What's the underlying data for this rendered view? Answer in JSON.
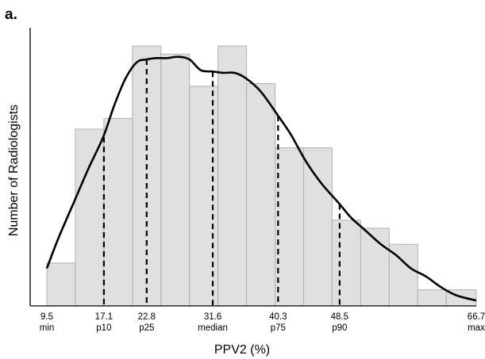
{
  "panel_label": "a.",
  "chart_data": {
    "type": "bar",
    "xlabel": "PPV2 (%)",
    "ylabel": "Number of Radiologists",
    "xlim": [
      9.5,
      66.7
    ],
    "ylim": [
      0,
      1
    ],
    "y_ticks_shown": false,
    "grid": false,
    "legend": "none",
    "colors": {
      "bar_fill": "#e0e0e0",
      "bar_stroke": "#b0b0b0",
      "curve": "#000000",
      "axis": "#000000"
    },
    "histogram": {
      "bin_edges": [
        9.5,
        13.3,
        17.1,
        20.9,
        24.7,
        28.5,
        32.3,
        36.1,
        39.9,
        43.7,
        47.5,
        51.3,
        55.1,
        58.9,
        62.7,
        66.7
      ],
      "values": [
        0.16,
        0.66,
        0.7,
        0.97,
        0.94,
        0.82,
        0.97,
        0.83,
        0.59,
        0.59,
        0.32,
        0.29,
        0.23,
        0.06,
        0.06
      ]
    },
    "density_curve": {
      "x": [
        9.5,
        11,
        13,
        15,
        17,
        18.5,
        20,
        21.5,
        22.8,
        24,
        25.5,
        27,
        28.5,
        30,
        31.6,
        33,
        34.5,
        36,
        38,
        40.3,
        42,
        44,
        46,
        48.5,
        50,
        52,
        54,
        56,
        58,
        60,
        62,
        64,
        66.7
      ],
      "y": [
        0.14,
        0.25,
        0.38,
        0.51,
        0.63,
        0.75,
        0.85,
        0.91,
        0.92,
        0.925,
        0.925,
        0.93,
        0.92,
        0.88,
        0.875,
        0.87,
        0.87,
        0.85,
        0.8,
        0.71,
        0.64,
        0.54,
        0.46,
        0.38,
        0.33,
        0.28,
        0.23,
        0.19,
        0.14,
        0.11,
        0.07,
        0.04,
        0.02
      ]
    },
    "reference_lines": [
      {
        "x": 17.1,
        "y": 0.63
      },
      {
        "x": 22.8,
        "y": 0.92
      },
      {
        "x": 31.6,
        "y": 0.875
      },
      {
        "x": 40.3,
        "y": 0.71
      },
      {
        "x": 48.5,
        "y": 0.38
      }
    ],
    "x_tick_labels": [
      {
        "x": 9.5,
        "value": "9.5",
        "label": "min"
      },
      {
        "x": 17.1,
        "value": "17.1",
        "label": "p10"
      },
      {
        "x": 22.8,
        "value": "22.8",
        "label": "p25"
      },
      {
        "x": 31.6,
        "value": "31.6",
        "label": "median"
      },
      {
        "x": 40.3,
        "value": "40.3",
        "label": "p75"
      },
      {
        "x": 48.5,
        "value": "48.5",
        "label": "p90"
      },
      {
        "x": 66.7,
        "value": "66.7",
        "label": "max"
      }
    ]
  }
}
